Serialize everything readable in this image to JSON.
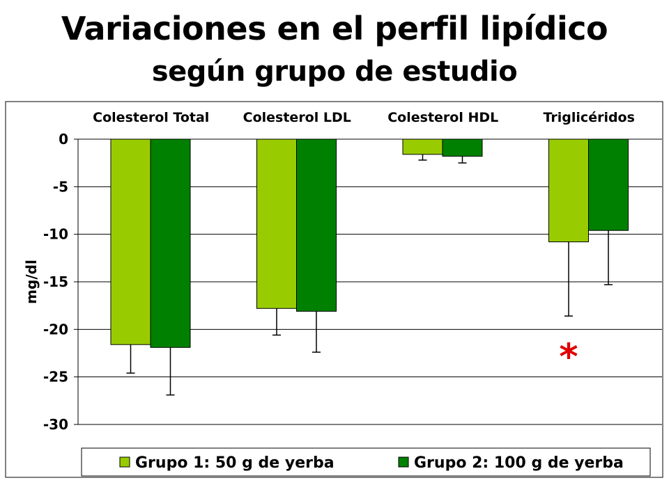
{
  "title": {
    "line1": "Variaciones en el perfil lipídico",
    "line2": "según grupo de estudio"
  },
  "chart_data": {
    "type": "bar",
    "categories": [
      "Colesterol Total",
      "Colesterol LDL",
      "Colesterol HDL",
      "Triglicéridos"
    ],
    "ylabel": "mg/dl",
    "xlabel": "",
    "ylim": [
      -30,
      0
    ],
    "yticks": [
      0,
      -5,
      -10,
      -15,
      -20,
      -25,
      -30
    ],
    "grid": true,
    "category_labels_position": "top",
    "legend_position": "bottom",
    "series": [
      {
        "name": "Grupo 1: 50 g de yerba",
        "color": "#99cc00",
        "values": [
          -21.6,
          -17.8,
          -1.6,
          -10.8
        ],
        "error": [
          3.0,
          2.8,
          0.6,
          7.8
        ]
      },
      {
        "name": "Grupo 2: 100 g de yerba",
        "color": "#008000",
        "values": [
          -21.9,
          -18.1,
          -1.8,
          -9.6
        ],
        "error": [
          5.0,
          4.3,
          0.7,
          5.7
        ]
      }
    ],
    "annotations": [
      {
        "text": "*",
        "category": "Triglicéridos",
        "series": 0,
        "y": -22,
        "color": "#e00000"
      }
    ]
  }
}
